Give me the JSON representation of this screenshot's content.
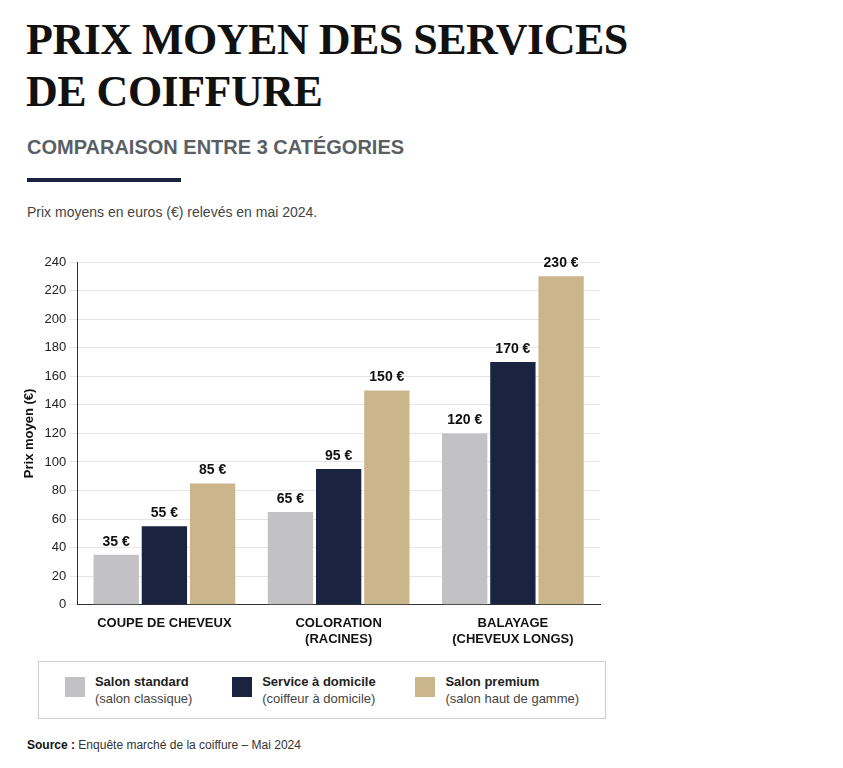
{
  "chart_data": {
    "type": "bar",
    "title": "PRIX MOYEN DES SERVICES DE COIFFURE",
    "subtitle": "COMPARAISON ENTRE 3 CATÉGORIES",
    "note": "Prix moyens en euros (€) relevés en mai 2024.",
    "y_label": "Prix moyen (€)",
    "categories": [
      "COUPE DE CHEVEUX",
      "COLORATION (RACINES)",
      "BALAYAGE (CHEVEUX LONGS)"
    ],
    "series": [
      {
        "name": "Salon standard",
        "description": "(salon classique)",
        "color": "#c2c2c4",
        "values": [
          35,
          65,
          120
        ],
        "value_labels": [
          "35 €",
          "65 €",
          "120 €"
        ]
      },
      {
        "name": "Service à domicile",
        "description": "(coiffeur à domicile)",
        "color": "#1a2340",
        "values": [
          55,
          95,
          170
        ],
        "value_labels": [
          "55 €",
          "95 €",
          "170 €"
        ]
      },
      {
        "name": "Salon premium",
        "description": "(salon haut de gamme)",
        "color": "#cbb68c",
        "values": [
          85,
          150,
          230
        ],
        "value_labels": [
          "85 €",
          "150 €",
          "230 €"
        ]
      }
    ],
    "ylim": [
      0,
      240
    ],
    "yticks": [
      0,
      20,
      40,
      60,
      80,
      100,
      120,
      140,
      160,
      180,
      200,
      220,
      240
    ],
    "grid": true,
    "legend": "bottom",
    "data_labels": true,
    "source_label": "Source :",
    "source": "Enquête marché de la coiffure – Mai 2024"
  }
}
